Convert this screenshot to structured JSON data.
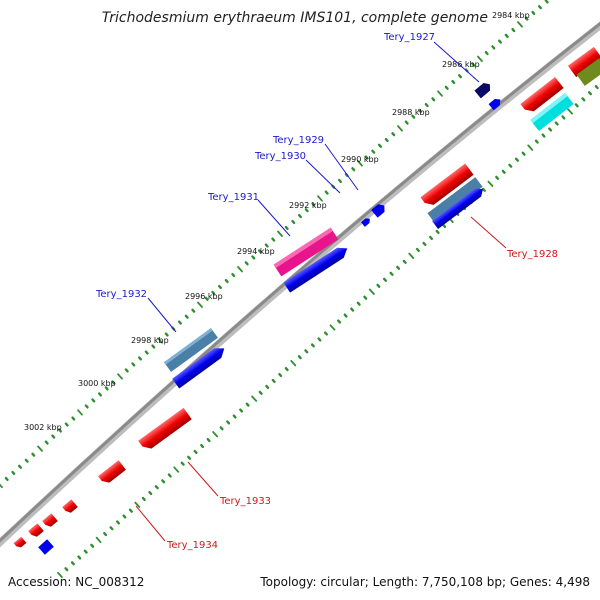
{
  "title": "Trichodesmium erythraeum IMS101, complete genome",
  "accession": "Accession: NC_008312",
  "topology": "Topology: circular; Length: 7,750,108 bp; Genes: 4,498",
  "scale_labels": [
    "2984 kbp",
    "2986 kbp",
    "2988 kbp",
    "2990 kbp",
    "2992 kbp",
    "2994 kbp",
    "2996 kbp",
    "2998 kbp",
    "3000 kbp",
    "3002 kbp"
  ],
  "genes": {
    "forward": [
      {
        "name": "Tery_1927",
        "color": "#000099"
      },
      {
        "name": "Tery_1929",
        "color": "#000099"
      },
      {
        "name": "Tery_1930",
        "color": "#000099"
      },
      {
        "name": "Tery_1931",
        "color": "#000099"
      },
      {
        "name": "Tery_1932",
        "color": "#000099"
      }
    ],
    "reverse": [
      {
        "name": "Tery_1928",
        "color": "#cc0000"
      },
      {
        "name": "Tery_1933",
        "color": "#cc0000"
      },
      {
        "name": "Tery_1934",
        "color": "#cc0000"
      }
    ]
  },
  "feature_colors": {
    "cds_forward": "#0000ee",
    "cds_reverse": "#ee0000",
    "dark_blue": "#0a0a66",
    "steel_blue": "#4a7fa8",
    "magenta": "#e8148c",
    "cyan": "#00dede",
    "olive": "#6f8b1e",
    "tick_green": "#2f8f2f"
  }
}
